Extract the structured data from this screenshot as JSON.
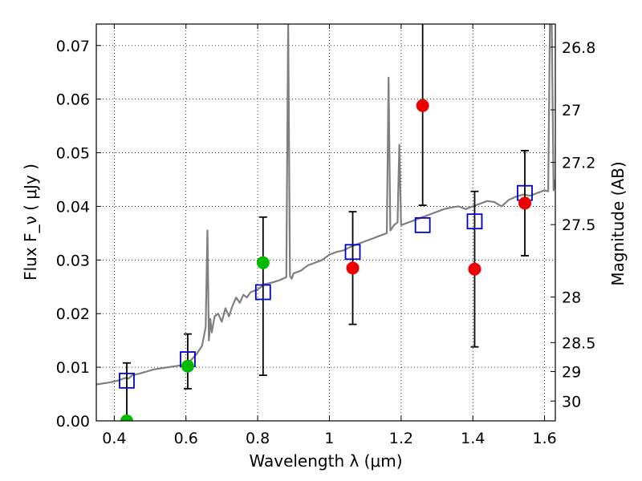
{
  "chart_data": {
    "type": "scatter",
    "xlabel": "Wavelength  λ (μm)",
    "ylabel": "Flux  F_ν  ( μJy )",
    "ylabel_right": "Magnitude (AB)",
    "xlim": [
      0.35,
      1.63
    ],
    "ylim": [
      0.0,
      0.074
    ],
    "grid": true,
    "x_ticks": [
      0.4,
      0.6,
      0.8,
      1.0,
      1.2,
      1.4,
      1.6
    ],
    "x_tick_labels": [
      "0.4",
      "0.6",
      "0.8",
      "1",
      "1.2",
      "1.4",
      "1.6"
    ],
    "y_ticks": [
      0.0,
      0.01,
      0.02,
      0.03,
      0.04,
      0.05,
      0.06,
      0.07
    ],
    "y_tick_labels": [
      "0.00",
      "0.01",
      "0.02",
      "0.03",
      "0.04",
      "0.05",
      "0.06",
      "0.07"
    ],
    "right_ticks": [
      {
        "label": "26.8",
        "flux": 0.0697
      },
      {
        "label": "27",
        "flux": 0.058
      },
      {
        "label": "27.2",
        "flux": 0.0482
      },
      {
        "label": "27.5",
        "flux": 0.0366
      },
      {
        "label": "28",
        "flux": 0.0231
      },
      {
        "label": "28.5",
        "flux": 0.0146
      },
      {
        "label": "29",
        "flux": 0.0092
      },
      {
        "label": "30",
        "flux": 0.0037
      }
    ],
    "series": [
      {
        "name": "model spectrum",
        "kind": "line",
        "color": "#7f7f7f",
        "x": [
          0.35,
          0.37,
          0.39,
          0.41,
          0.43,
          0.44,
          0.45,
          0.47,
          0.49,
          0.51,
          0.53,
          0.55,
          0.57,
          0.59,
          0.61,
          0.63,
          0.645,
          0.655,
          0.66,
          0.664,
          0.668,
          0.672,
          0.68,
          0.69,
          0.7,
          0.71,
          0.72,
          0.73,
          0.74,
          0.75,
          0.76,
          0.77,
          0.78,
          0.8,
          0.82,
          0.84,
          0.86,
          0.88,
          0.885,
          0.89,
          0.895,
          0.9,
          0.92,
          0.94,
          0.96,
          0.98,
          1.0,
          1.02,
          1.04,
          1.06,
          1.08,
          1.1,
          1.12,
          1.14,
          1.16,
          1.165,
          1.17,
          1.175,
          1.18,
          1.19,
          1.195,
          1.2,
          1.22,
          1.24,
          1.26,
          1.28,
          1.3,
          1.32,
          1.34,
          1.36,
          1.38,
          1.4,
          1.42,
          1.44,
          1.46,
          1.48,
          1.5,
          1.52,
          1.54,
          1.56,
          1.58,
          1.6,
          1.61,
          1.615,
          1.62,
          1.625,
          1.63
        ],
        "y": [
          0.0068,
          0.007,
          0.0072,
          0.0075,
          0.008,
          0.0079,
          0.0085,
          0.0088,
          0.0092,
          0.0096,
          0.0098,
          0.01,
          0.0102,
          0.0104,
          0.011,
          0.0125,
          0.014,
          0.0175,
          0.0355,
          0.015,
          0.019,
          0.0165,
          0.0195,
          0.02,
          0.0185,
          0.021,
          0.0195,
          0.0215,
          0.023,
          0.022,
          0.0235,
          0.023,
          0.024,
          0.0245,
          0.0255,
          0.0258,
          0.0262,
          0.0268,
          0.0745,
          0.027,
          0.0265,
          0.0275,
          0.028,
          0.029,
          0.0295,
          0.03,
          0.031,
          0.0315,
          0.0318,
          0.0325,
          0.033,
          0.0335,
          0.034,
          0.0345,
          0.035,
          0.064,
          0.0355,
          0.036,
          0.0365,
          0.037,
          0.0515,
          0.0365,
          0.037,
          0.0375,
          0.038,
          0.0385,
          0.039,
          0.0395,
          0.0398,
          0.04,
          0.0395,
          0.04,
          0.0405,
          0.041,
          0.0408,
          0.04,
          0.0412,
          0.0418,
          0.0422,
          0.042,
          0.0425,
          0.043,
          0.0428,
          0.0745,
          0.0745,
          0.043,
          0.045
        ]
      },
      {
        "name": "model photometry",
        "kind": "square",
        "color": "#0000cc",
        "x": [
          0.435,
          0.605,
          0.815,
          1.065,
          1.26,
          1.405,
          1.545
        ],
        "y": [
          0.0075,
          0.0115,
          0.024,
          0.0315,
          0.0365,
          0.0372,
          0.0425
        ]
      },
      {
        "name": "observed (green)",
        "kind": "circle",
        "color": "#00bb00",
        "x": [
          0.435,
          0.605,
          0.815
        ],
        "y": [
          0.0,
          0.0102,
          0.0295
        ],
        "err_low": [
          null,
          0.006,
          0.0085
        ],
        "err_high": [
          0.0108,
          0.0162,
          0.038
        ]
      },
      {
        "name": "observed (red)",
        "kind": "circle",
        "color": "#ee0000",
        "x": [
          1.065,
          1.26,
          1.405,
          1.545
        ],
        "y": [
          0.0285,
          0.0588,
          0.0283,
          0.0406
        ],
        "err_low": [
          0.018,
          0.0402,
          0.0138,
          0.0308
        ],
        "err_high": [
          0.039,
          0.0745,
          0.0428,
          0.0504
        ]
      }
    ]
  }
}
